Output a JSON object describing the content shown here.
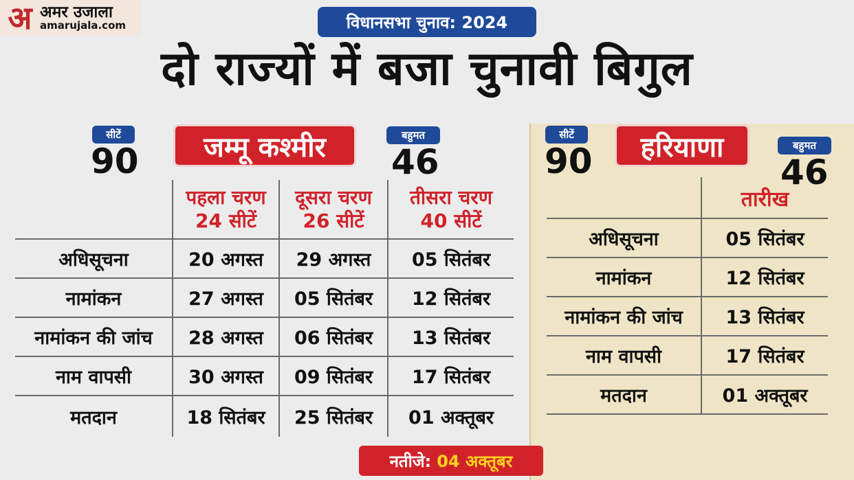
{
  "brand": {
    "logo_mark": "अ",
    "name_hindi": "अमर उजाला",
    "url": "amarujala.com"
  },
  "header": {
    "tag": "विधानसभा चुनाव: 2024",
    "headline": "दो राज्यों में बजा चुनावी बिगुल"
  },
  "jammu_kashmir": {
    "seats_label": "सीटें",
    "seats": "90",
    "state_name": "जम्मू कश्मीर",
    "majority_label": "बहुमत",
    "majority": "46",
    "phases": [
      {
        "name": "पहला चरण",
        "seats": "24 सीटें"
      },
      {
        "name": "दूसरा चरण",
        "seats": "26 सीटें"
      },
      {
        "name": "तीसरा चरण",
        "seats": "40 सीटें"
      }
    ],
    "rows": [
      {
        "label": "अधिसूचना",
        "dates": [
          "20 अगस्त",
          "29 अगस्त",
          "05 सितंबर"
        ]
      },
      {
        "label": "नामांकन",
        "dates": [
          "27 अगस्त",
          "05 सितंबर",
          "12 सितंबर"
        ]
      },
      {
        "label": "नामांकन की जांच",
        "dates": [
          "28 अगस्त",
          "06 सितंबर",
          "13 सितंबर"
        ]
      },
      {
        "label": "नाम वापसी",
        "dates": [
          "30 अगस्त",
          "09 सितंबर",
          "17 सितंबर"
        ]
      },
      {
        "label": "मतदान",
        "dates": [
          "18 सितंबर",
          "25 सितंबर",
          "01 अक्तूबर"
        ]
      }
    ]
  },
  "haryana": {
    "seats_label": "सीटें",
    "seats": "90",
    "state_name": "हरियाणा",
    "majority_label": "बहुमत",
    "majority": "46",
    "date_header": "तारीख",
    "rows": [
      {
        "label": "अधिसूचना",
        "date": "05 सितंबर"
      },
      {
        "label": "नामांकन",
        "date": "12 सितंबर"
      },
      {
        "label": "नामांकन की जांच",
        "date": "13 सितंबर"
      },
      {
        "label": "नाम वापसी",
        "date": "17 सितंबर"
      },
      {
        "label": "मतदान",
        "date": "01 अक्तूबर"
      }
    ]
  },
  "result": {
    "label": "नतीजे:",
    "date": "04 अक्तूबर"
  },
  "colors": {
    "red": "#d1222a",
    "blue": "#1f4a9a",
    "yellow": "#ffd21e",
    "haryana_panel": "#efe5c6"
  }
}
